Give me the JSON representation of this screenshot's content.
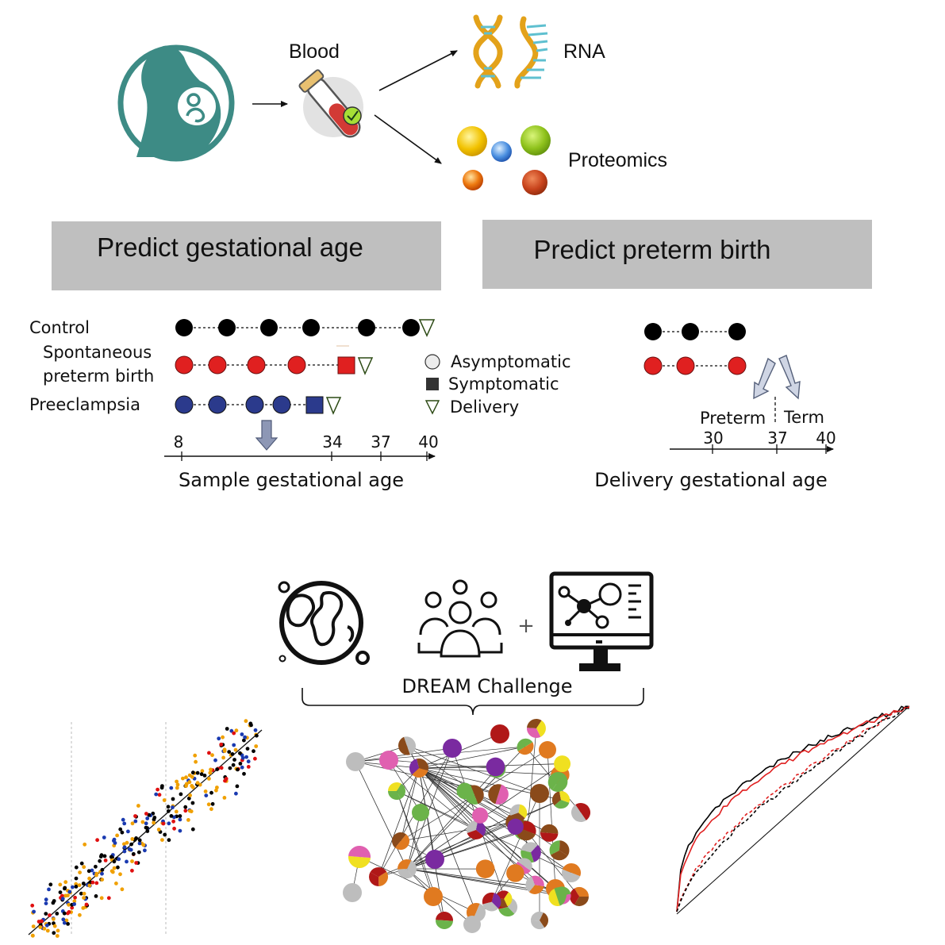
{
  "workflow": {
    "blood_label": "Blood",
    "rna_label": "RNA",
    "proteomics_label": "Proteomics"
  },
  "banners": {
    "left": "Predict gestational age",
    "right": "Predict preterm birth"
  },
  "left_panel": {
    "rows": {
      "control": "Control",
      "sptb_line1": "Spontaneous",
      "sptb_line2": "preterm birth",
      "preeclampsia": "Preeclampsia"
    },
    "legend": {
      "asymptomatic": "Asymptomatic",
      "symptomatic": "Symptomatic",
      "delivery": "Delivery"
    },
    "axis_ticks": [
      "8",
      "34",
      "37",
      "40"
    ],
    "axis_label": "Sample gestational age"
  },
  "right_panel": {
    "preterm_label": "Preterm",
    "term_label": "Term",
    "axis_ticks": [
      "30",
      "37",
      "40"
    ],
    "axis_label": "Delivery gestational age"
  },
  "dream": {
    "label": "DREAM Challenge",
    "plus": "+"
  },
  "colors": {
    "teal": "#3d8b85",
    "banner_gray": "#bfbfbf",
    "control": "#000000",
    "sptb": "#e02020",
    "preeclampsia": "#2b3a8c",
    "black_curve": "#000000",
    "red_curve": "#e02020"
  },
  "icons": [
    "pregnant-woman-icon",
    "blood-tube-icon",
    "rna-helix-icon",
    "protein-spheres-icon",
    "globe-icon",
    "people-group-icon",
    "computer-network-icon"
  ]
}
